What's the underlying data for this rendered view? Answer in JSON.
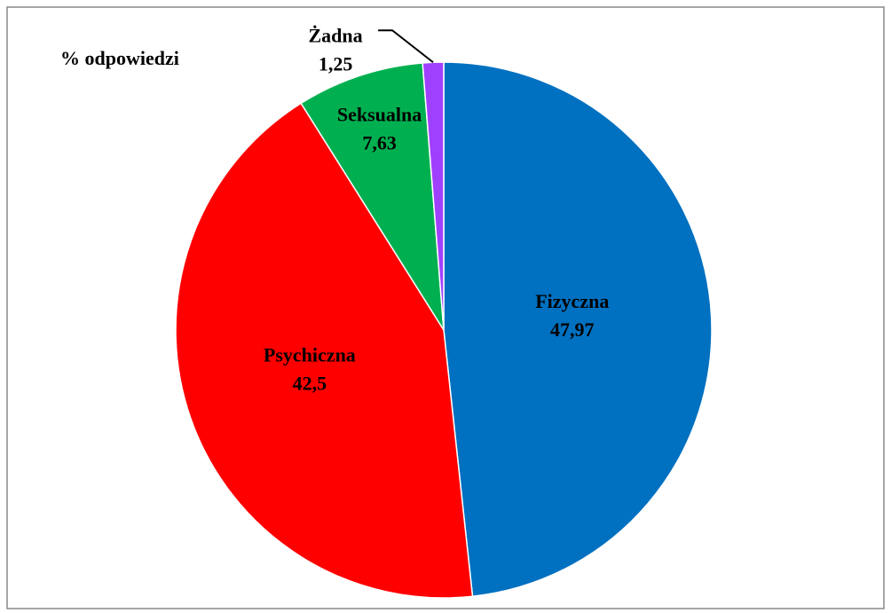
{
  "chart_data": {
    "type": "pie",
    "title": "% odpowiedzi",
    "categories": [
      "Fizyczna",
      "Psychiczna",
      "Seksualna",
      "Żadna"
    ],
    "values": [
      47.97,
      42.5,
      7.63,
      1.25
    ],
    "value_labels": [
      "47,97",
      "42,5",
      "7,63",
      "1,25"
    ],
    "colors": [
      "#0070c0",
      "#ff0000",
      "#00b050",
      "#a040ff"
    ]
  }
}
